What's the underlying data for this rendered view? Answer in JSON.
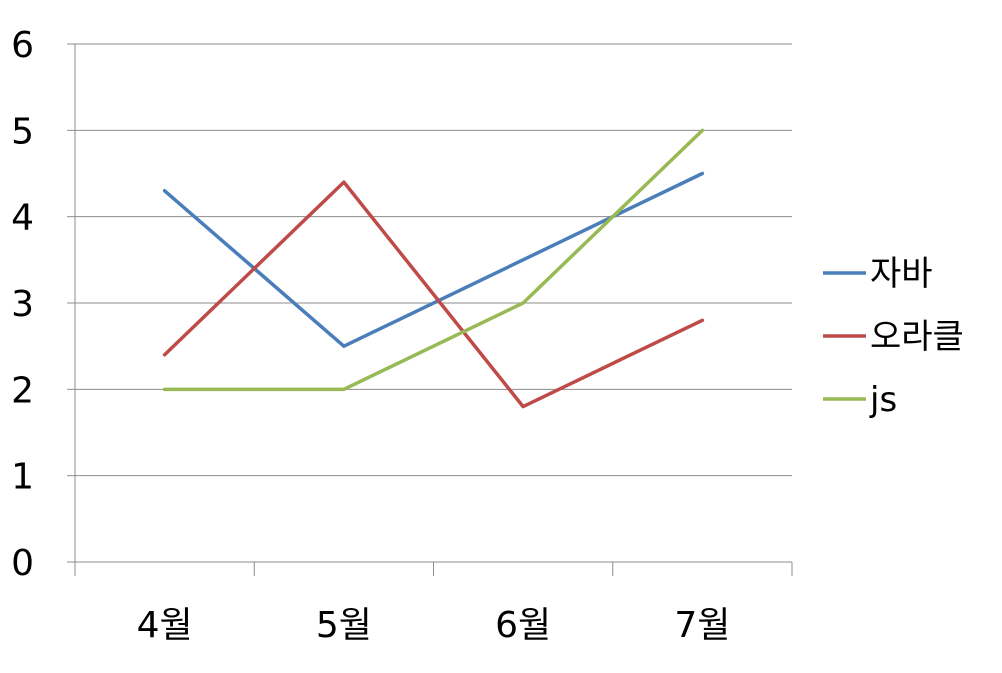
{
  "chart_data": {
    "type": "line",
    "categories": [
      "4월",
      "5월",
      "6월",
      "7월"
    ],
    "series": [
      {
        "name": "자바",
        "values": [
          4.3,
          2.5,
          3.5,
          4.5
        ],
        "color": "#4a7ebb"
      },
      {
        "name": "오라클",
        "values": [
          2.4,
          4.4,
          1.8,
          2.8
        ],
        "color": "#be4b48"
      },
      {
        "name": "js",
        "values": [
          2.0,
          2.0,
          3.0,
          5.0
        ],
        "color": "#98b954"
      }
    ],
    "ylim": [
      0,
      6
    ],
    "yticks": [
      "0",
      "1",
      "2",
      "3",
      "4",
      "5",
      "6"
    ],
    "grid": true,
    "legend": "right"
  }
}
